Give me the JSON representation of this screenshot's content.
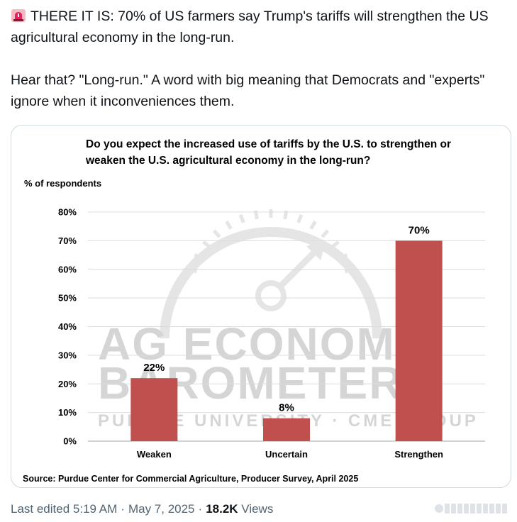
{
  "tweet": {
    "emoji_icon": "rotating-light-icon",
    "paragraph1": "THERE IT IS: 70% of US farmers say Trump's tariffs will strengthen the US agricultural economy in the long-run.",
    "paragraph2": "Hear that? \"Long-run.\" A word with big meaning that Democrats and \"experts\" ignore when it inconveniences them."
  },
  "chart_data": {
    "type": "bar",
    "title_line1": "Do you expect the increased use of tariffs by the U.S. to strengthen or",
    "title_line2": "weaken the U.S. agricultural economy in the long-run?",
    "ylabel": "% of respondents",
    "xlabel": "",
    "categories": [
      "Weaken",
      "Uncertain",
      "Strengthen"
    ],
    "values": [
      22,
      8,
      70
    ],
    "data_labels": [
      "22%",
      "8%",
      "70%"
    ],
    "ylim": [
      0,
      80
    ],
    "yticks": [
      0,
      10,
      20,
      30,
      40,
      50,
      60,
      70,
      80
    ],
    "ytick_labels": [
      "0%",
      "10%",
      "20%",
      "30%",
      "40%",
      "50%",
      "60%",
      "70%",
      "80%"
    ],
    "grid": true,
    "bar_color": "#c0504d",
    "watermark": {
      "line1": "AG ECONOMY",
      "line2": "BAROMETER",
      "line3": "PURDUE UNIVERSITY · CME GROUP"
    },
    "source": "Source: Purdue Center for Commercial Agriculture, Producer Survey, April 2025"
  },
  "meta": {
    "edited_label": "Last edited 5:19 AM",
    "separator": "·",
    "date": "May 7, 2025",
    "views_count": "18.2K",
    "views_label": "Views"
  }
}
